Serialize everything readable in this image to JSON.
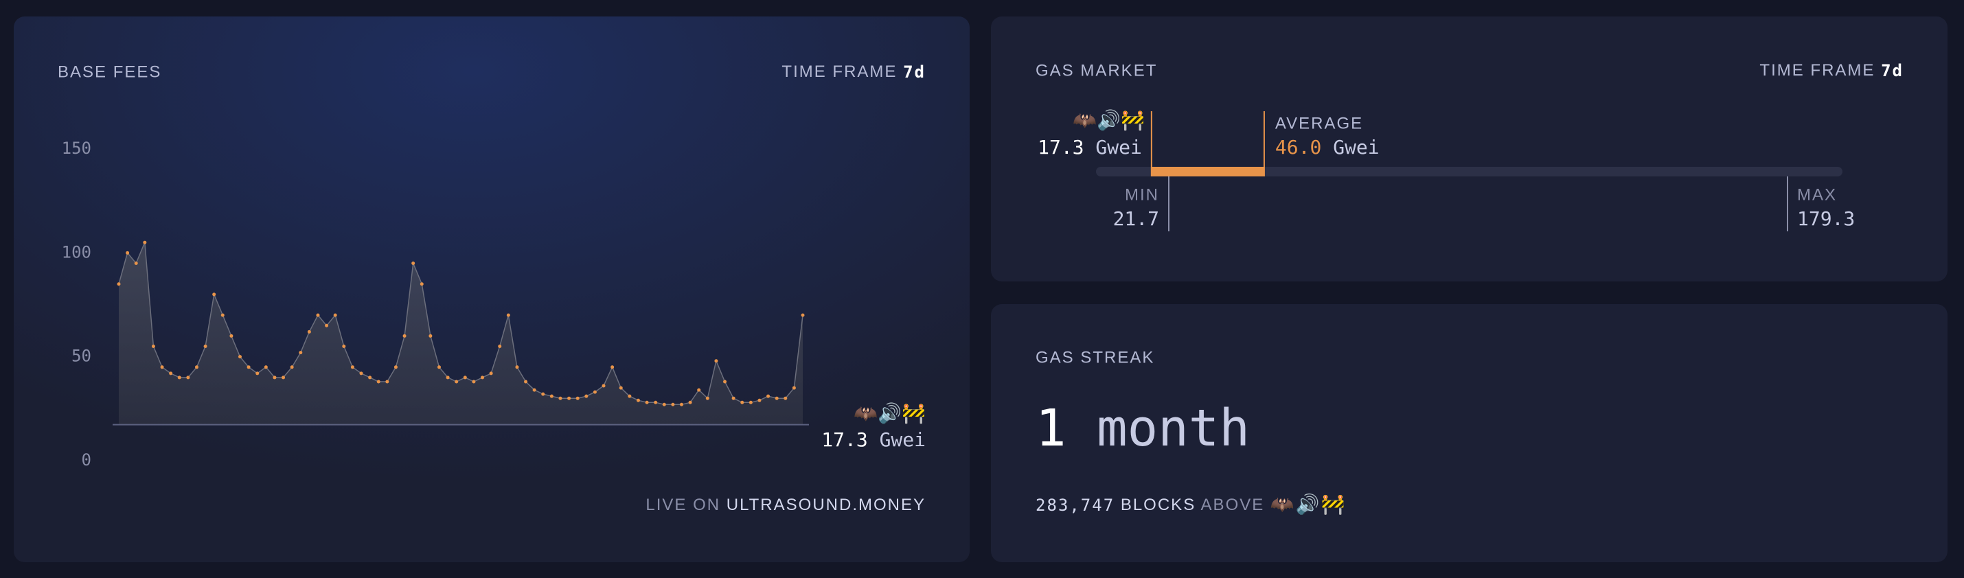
{
  "chart_data": {
    "type": "line",
    "title": "BASE FEES",
    "ylim": [
      0,
      150
    ],
    "yticks": [
      0,
      50,
      100,
      150
    ],
    "color": "#e8944a",
    "values": [
      85,
      100,
      95,
      105,
      55,
      45,
      42,
      40,
      40,
      45,
      55,
      80,
      70,
      60,
      50,
      45,
      42,
      45,
      40,
      40,
      45,
      52,
      62,
      70,
      65,
      70,
      55,
      45,
      42,
      40,
      38,
      38,
      45,
      60,
      95,
      85,
      60,
      45,
      40,
      38,
      40,
      38,
      40,
      42,
      55,
      70,
      45,
      38,
      34,
      32,
      31,
      30,
      30,
      30,
      31,
      33,
      36,
      45,
      35,
      31,
      29,
      28,
      28,
      27,
      27,
      27,
      28,
      34,
      30,
      48,
      38,
      30,
      28,
      28,
      29,
      31,
      30,
      30,
      35,
      70
    ],
    "current": 17.3,
    "unit": "Gwei",
    "icon": "🦇🔊🚧"
  },
  "base_fees": {
    "time_frame_label": "TIME FRAME",
    "time_frame": "7d",
    "footer_prefix": "LIVE ON",
    "footer_site": "ULTRASOUND.MONEY"
  },
  "gas_market": {
    "title": "GAS MARKET",
    "time_frame_label": "TIME FRAME",
    "time_frame": "7d",
    "average_label": "AVERAGE",
    "average": {
      "value": 46,
      "label": "46.0"
    },
    "min_label": "MIN",
    "min": 21.7,
    "max_label": "MAX",
    "max": 179.3
  },
  "gas_streak": {
    "title": "GAS STREAK",
    "count": "1",
    "unit": "month",
    "blocks": "283,747",
    "blocks_label": "BLOCKS",
    "above_label": "ABOVE"
  }
}
